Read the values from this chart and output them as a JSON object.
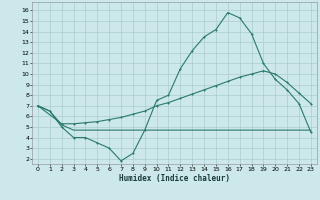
{
  "xlabel": "Humidex (Indice chaleur)",
  "bg_color": "#cce8ea",
  "grid_color": "#aacccc",
  "line_color": "#2a7a6a",
  "x_ticks": [
    0,
    1,
    2,
    3,
    4,
    5,
    6,
    7,
    8,
    9,
    10,
    11,
    12,
    13,
    14,
    15,
    16,
    17,
    18,
    19,
    20,
    21,
    22,
    23
  ],
  "y_ticks": [
    2,
    3,
    4,
    5,
    6,
    7,
    8,
    9,
    10,
    11,
    12,
    13,
    14,
    15,
    16
  ],
  "ylim": [
    1.5,
    16.8
  ],
  "xlim": [
    -0.5,
    23.5
  ],
  "line1_x": [
    0,
    1,
    2,
    3,
    4,
    5,
    6,
    7,
    8,
    9,
    10,
    11,
    12,
    13,
    14,
    15,
    16,
    17,
    18,
    19,
    20,
    21,
    22,
    23
  ],
  "line1_y": [
    7.0,
    6.5,
    5.0,
    4.0,
    4.0,
    3.5,
    3.0,
    1.8,
    2.5,
    4.7,
    7.5,
    8.0,
    10.5,
    12.2,
    13.5,
    14.2,
    15.8,
    15.3,
    13.8,
    11.0,
    9.5,
    8.5,
    7.2,
    4.5
  ],
  "line2_x": [
    0,
    2,
    3,
    4,
    5,
    6,
    7,
    8,
    9,
    10,
    11,
    12,
    13,
    14,
    15,
    16,
    17,
    18,
    19,
    20,
    21,
    22,
    23
  ],
  "line2_y": [
    7.0,
    5.3,
    5.3,
    5.4,
    5.5,
    5.7,
    5.9,
    6.2,
    6.5,
    7.0,
    7.3,
    7.7,
    8.1,
    8.5,
    8.9,
    9.3,
    9.7,
    10.0,
    10.3,
    10.0,
    9.2,
    8.2,
    7.2
  ],
  "line3_x": [
    0,
    1,
    2,
    3,
    4,
    5,
    6,
    7,
    8,
    9,
    10,
    11,
    12,
    13,
    14,
    15,
    16,
    17,
    18,
    19,
    20,
    21,
    22,
    23
  ],
  "line3_y": [
    7.0,
    6.5,
    5.2,
    4.7,
    4.7,
    4.7,
    4.7,
    4.7,
    4.7,
    4.7,
    4.7,
    4.7,
    4.7,
    4.7,
    4.7,
    4.7,
    4.7,
    4.7,
    4.7,
    4.7,
    4.7,
    4.7,
    4.7,
    4.7
  ]
}
